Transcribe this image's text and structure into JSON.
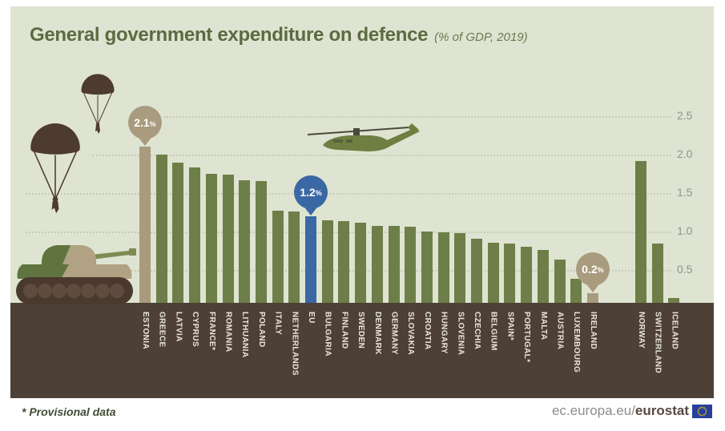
{
  "title": {
    "main": "General government expenditure on defence",
    "sub": "(% of GDP, 2019)"
  },
  "footnote": "* Provisional data",
  "footer_brand": {
    "prefix": "ec.europa.eu/",
    "bold": "eurostat"
  },
  "colors": {
    "background": "#dee4d1",
    "bar_green": "#6e7e48",
    "bar_tan": "#a99b7e",
    "bar_blue": "#3a68a4",
    "ground_brown": "#4d4037",
    "category_text": "#eae6da",
    "title_green": "#5b6b42",
    "axis_text": "#8e938a",
    "gridline": "#c6cdb6",
    "eu_flag_blue": "#27409c",
    "eu_flag_stars": "#ffcc00"
  },
  "icons": [
    "parachutist-icon",
    "parachutist-icon",
    "helicopter-icon",
    "tank-icon",
    "eu-flag-icon"
  ],
  "chart_data": {
    "type": "bar",
    "title": "General government expenditure on defence",
    "subtitle": "(% of GDP, 2019)",
    "ylabel": "% of GDP",
    "ylim": [
      0,
      2.5
    ],
    "grid_interval": 0.5,
    "grid": "dotted",
    "axis_side": "right",
    "yticks": [
      0.5,
      1.0,
      1.5,
      2.0,
      2.5
    ],
    "legend_position": "none",
    "bars": [
      {
        "label": "ESTONIA",
        "value": 2.1,
        "color": "tan"
      },
      {
        "label": "GREECE",
        "value": 2.0,
        "color": "green"
      },
      {
        "label": "LATVIA",
        "value": 1.9,
        "color": "green"
      },
      {
        "label": "CYPRUS",
        "value": 1.83,
        "color": "green"
      },
      {
        "label": "FRANCE*",
        "value": 1.75,
        "color": "green"
      },
      {
        "label": "ROMANIA",
        "value": 1.74,
        "color": "green"
      },
      {
        "label": "LITHUANIA",
        "value": 1.67,
        "color": "green"
      },
      {
        "label": "POLAND",
        "value": 1.66,
        "color": "green"
      },
      {
        "label": "ITALY",
        "value": 1.27,
        "color": "green"
      },
      {
        "label": "NETHERLANDS",
        "value": 1.26,
        "color": "green"
      },
      {
        "label": "EU",
        "value": 1.2,
        "color": "blue"
      },
      {
        "label": "BULGARIA",
        "value": 1.15,
        "color": "green"
      },
      {
        "label": "FINLAND",
        "value": 1.14,
        "color": "green"
      },
      {
        "label": "SWEDEN",
        "value": 1.11,
        "color": "green"
      },
      {
        "label": "DENMARK",
        "value": 1.07,
        "color": "green"
      },
      {
        "label": "GERMANY",
        "value": 1.07,
        "color": "green"
      },
      {
        "label": "SLOVAKIA",
        "value": 1.06,
        "color": "green"
      },
      {
        "label": "CROATIA",
        "value": 1.0,
        "color": "green"
      },
      {
        "label": "HUNGARY",
        "value": 0.99,
        "color": "green"
      },
      {
        "label": "SLOVENIA",
        "value": 0.98,
        "color": "green"
      },
      {
        "label": "CZECHIA",
        "value": 0.91,
        "color": "green"
      },
      {
        "label": "BELGIUM",
        "value": 0.85,
        "color": "green"
      },
      {
        "label": "SPAIN*",
        "value": 0.84,
        "color": "green"
      },
      {
        "label": "PORTUGAL*",
        "value": 0.8,
        "color": "green"
      },
      {
        "label": "MALTA",
        "value": 0.76,
        "color": "green"
      },
      {
        "label": "AUSTRIA",
        "value": 0.64,
        "color": "green"
      },
      {
        "label": "LUXEMBOURG",
        "value": 0.39,
        "color": "green"
      },
      {
        "label": "IRELAND",
        "value": 0.2,
        "color": "tan"
      }
    ],
    "efta_bars": [
      {
        "label": "NORWAY",
        "value": 1.92,
        "color": "green"
      },
      {
        "label": "SWITZERLAND",
        "value": 0.84,
        "color": "green"
      },
      {
        "label": "ICELAND",
        "value": 0.14,
        "color": "green"
      }
    ],
    "callouts": [
      {
        "bar": "ESTONIA",
        "label": "2.1%",
        "style": "tan"
      },
      {
        "bar": "EU",
        "label": "1.2%",
        "style": "blue"
      },
      {
        "bar": "IRELAND",
        "label": "0.2%",
        "style": "tan"
      }
    ]
  }
}
